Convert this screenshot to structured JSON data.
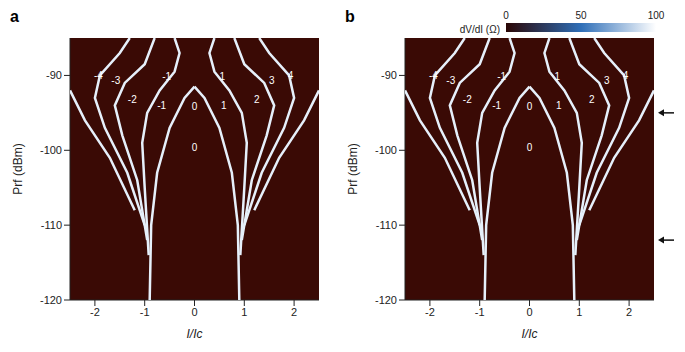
{
  "chart_data": [
    {
      "type": "heatmap_ridges",
      "title": "a",
      "x_label": "I/Ic",
      "y_label": "Prf (dBm)",
      "xlim": [
        -2.5,
        2.5
      ],
      "xticks": [
        -2,
        -1,
        0,
        1,
        2
      ],
      "ylim": [
        -120,
        -85
      ],
      "yticks": [
        -120,
        -110,
        -100,
        -90
      ],
      "background": "#3a0a05",
      "color": "#e6f0fb",
      "series": [
        {
          "x": [
            0.9,
            0.87,
            0.75,
            0.5,
            0.2,
            0
          ],
          "y": [
            -120,
            -110,
            -103,
            -97,
            -93,
            -91.5
          ]
        },
        {
          "x": [
            -0.9,
            -0.87,
            -0.75,
            -0.5,
            -0.2,
            0
          ],
          "y": [
            -120,
            -110,
            -103,
            -97,
            -93,
            -91.5
          ]
        },
        {
          "x": [
            0.92,
            1.0,
            1.05,
            0.95,
            0.7,
            0.4,
            0.3,
            0.4
          ],
          "y": [
            -114,
            -105,
            -99,
            -95,
            -92,
            -89.5,
            -87,
            -85
          ]
        },
        {
          "x": [
            -0.92,
            -1.0,
            -1.05,
            -0.95,
            -0.7,
            -0.4,
            -0.3,
            -0.4
          ],
          "y": [
            -114,
            -105,
            -99,
            -95,
            -92,
            -89.5,
            -87,
            -85
          ]
        },
        {
          "x": [
            0.95,
            1.15,
            1.45,
            1.6,
            1.4,
            1.0,
            0.8
          ],
          "y": [
            -112,
            -104,
            -98,
            -94,
            -91,
            -88.5,
            -85
          ]
        },
        {
          "x": [
            -0.95,
            -1.15,
            -1.45,
            -1.6,
            -1.4,
            -1.0,
            -0.8
          ],
          "y": [
            -112,
            -104,
            -98,
            -94,
            -91,
            -88.5,
            -85
          ]
        },
        {
          "x": [
            1.0,
            1.35,
            1.8,
            2.0,
            1.9,
            1.5,
            1.3
          ],
          "y": [
            -110,
            -103,
            -97,
            -93,
            -90,
            -87,
            -85
          ]
        },
        {
          "x": [
            -1.0,
            -1.35,
            -1.8,
            -2.0,
            -1.9,
            -1.5,
            -1.3
          ],
          "y": [
            -110,
            -103,
            -97,
            -93,
            -90,
            -87,
            -85
          ]
        },
        {
          "x": [
            1.2,
            1.7,
            2.2,
            2.5
          ],
          "y": [
            -108,
            -101,
            -96,
            -92
          ]
        },
        {
          "x": [
            -1.2,
            -1.7,
            -2.2,
            -2.5
          ],
          "y": [
            -108,
            -101,
            -96,
            -92
          ]
        }
      ],
      "annotations": [
        {
          "text": "-4",
          "x": -1.93,
          "y": -90
        },
        {
          "text": "-3",
          "x": -1.58,
          "y": -90.7
        },
        {
          "text": "-1",
          "x": -0.56,
          "y": -90.1
        },
        {
          "text": "0",
          "x": 0,
          "y": -94.2
        },
        {
          "text": "1",
          "x": 0.56,
          "y": -90.1
        },
        {
          "text": "3",
          "x": 1.55,
          "y": -90.7
        },
        {
          "text": "4",
          "x": 1.93,
          "y": -90
        },
        {
          "text": "-2",
          "x": -1.25,
          "y": -93.2
        },
        {
          "text": "-1",
          "x": -0.66,
          "y": -94
        },
        {
          "text": "1",
          "x": 0.59,
          "y": -94
        },
        {
          "text": "2",
          "x": 1.25,
          "y": -93.2
        },
        {
          "text": "0",
          "x": 0,
          "y": -99.6
        }
      ]
    },
    {
      "type": "heatmap_ridges",
      "title": "b",
      "x_label": "I/Ic",
      "y_label": "Prf (dBm)",
      "xlim": [
        -2.5,
        2.5
      ],
      "xticks": [
        -2,
        -1,
        0,
        1,
        2
      ],
      "ylim": [
        -120,
        -85
      ],
      "yticks": [
        -120,
        -110,
        -100,
        -90
      ],
      "background": "#3a0a05",
      "color": "#e6f0fb",
      "series": [
        {
          "x": [
            0.9,
            0.87,
            0.75,
            0.5,
            0.2,
            0
          ],
          "y": [
            -120,
            -110,
            -103,
            -97,
            -93,
            -91.5
          ]
        },
        {
          "x": [
            -0.9,
            -0.87,
            -0.75,
            -0.5,
            -0.2,
            0
          ],
          "y": [
            -120,
            -110,
            -103,
            -97,
            -93,
            -91.5
          ]
        },
        {
          "x": [
            0.92,
            1.0,
            1.05,
            0.95,
            0.7,
            0.4,
            0.3,
            0.4
          ],
          "y": [
            -114,
            -105,
            -99,
            -95,
            -92,
            -89.5,
            -87,
            -85
          ]
        },
        {
          "x": [
            -0.92,
            -1.0,
            -1.05,
            -0.95,
            -0.7,
            -0.4,
            -0.3,
            -0.4
          ],
          "y": [
            -114,
            -105,
            -99,
            -95,
            -92,
            -89.5,
            -87,
            -85
          ]
        },
        {
          "x": [
            0.95,
            1.15,
            1.45,
            1.6,
            1.4,
            1.0,
            0.8
          ],
          "y": [
            -112,
            -104,
            -98,
            -94,
            -91,
            -88.5,
            -85
          ]
        },
        {
          "x": [
            -0.95,
            -1.15,
            -1.45,
            -1.6,
            -1.4,
            -1.0,
            -0.8
          ],
          "y": [
            -112,
            -104,
            -98,
            -94,
            -91,
            -88.5,
            -85
          ]
        },
        {
          "x": [
            1.0,
            1.35,
            1.8,
            2.0,
            1.9,
            1.5,
            1.3
          ],
          "y": [
            -110,
            -103,
            -97,
            -93,
            -90,
            -87,
            -85
          ]
        },
        {
          "x": [
            -1.0,
            -1.35,
            -1.8,
            -2.0,
            -1.9,
            -1.5,
            -1.3
          ],
          "y": [
            -110,
            -103,
            -97,
            -93,
            -90,
            -87,
            -85
          ]
        },
        {
          "x": [
            1.2,
            1.7,
            2.2,
            2.5
          ],
          "y": [
            -108,
            -101,
            -96,
            -92
          ]
        },
        {
          "x": [
            -1.2,
            -1.7,
            -2.2,
            -2.5
          ],
          "y": [
            -108,
            -101,
            -96,
            -92
          ]
        }
      ],
      "annotations": [
        {
          "text": "-4",
          "x": -1.93,
          "y": -90
        },
        {
          "text": "-3",
          "x": -1.58,
          "y": -90.7
        },
        {
          "text": "-1",
          "x": -0.56,
          "y": -90.1
        },
        {
          "text": "0",
          "x": 0,
          "y": -94.2
        },
        {
          "text": "1",
          "x": 0.56,
          "y": -90.1
        },
        {
          "text": "3",
          "x": 1.55,
          "y": -90.7
        },
        {
          "text": "4",
          "x": 1.93,
          "y": -90
        },
        {
          "text": "-2",
          "x": -1.25,
          "y": -93.2
        },
        {
          "text": "-1",
          "x": -0.66,
          "y": -94
        },
        {
          "text": "1",
          "x": 0.59,
          "y": -94
        },
        {
          "text": "2",
          "x": 1.25,
          "y": -93.2
        },
        {
          "text": "0",
          "x": 0,
          "y": -99.6
        }
      ],
      "arrows_at": [
        -95,
        -112
      ],
      "colorbar": {
        "label": "dV/dI (Ω)",
        "range": [
          0,
          100
        ],
        "ticks": [
          0,
          50,
          100
        ],
        "colors": [
          "#2a0503",
          "#2f6fb8",
          "#ffffff"
        ]
      }
    }
  ]
}
